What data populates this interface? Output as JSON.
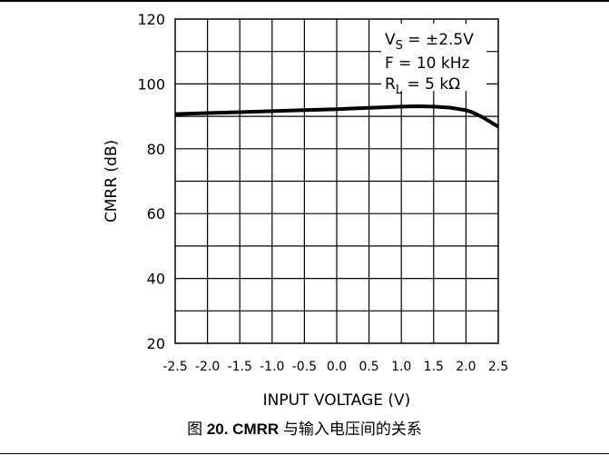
{
  "caption": {
    "prefix": "图",
    "label": "20. CMRR",
    "suffix": "与输入电压间的关系"
  },
  "chart_data": {
    "type": "line",
    "xlabel": "INPUT VOLTAGE (V)",
    "ylabel": "CMRR (dB)",
    "xlim": [
      -2.5,
      2.5
    ],
    "ylim": [
      20,
      120
    ],
    "x_ticks": [
      -2.5,
      -2.0,
      -1.5,
      -1.0,
      -0.5,
      0.0,
      0.5,
      1.0,
      1.5,
      2.0,
      2.5
    ],
    "x_tick_labels": [
      "-2.5",
      "-2.0",
      "-1.5",
      "-1.0",
      "-0.5",
      "0.0",
      "0.5",
      "1.0",
      "1.5",
      "2.0",
      "2.5"
    ],
    "y_ticks": [
      20,
      40,
      60,
      80,
      100,
      120
    ],
    "grid": true,
    "annotations": [
      {
        "main": "V",
        "sub": "S",
        "rest": " = ±2.5V"
      },
      {
        "main": "F = 10 kHz",
        "sub": "",
        "rest": ""
      },
      {
        "main": "R",
        "sub": "L",
        "rest": " = 5 kΩ"
      }
    ],
    "series": [
      {
        "x": [
          -2.5,
          -2.0,
          -1.5,
          -1.0,
          -0.5,
          0.0,
          0.5,
          1.0,
          1.25,
          1.5,
          1.75,
          2.0,
          2.1,
          2.25,
          2.4,
          2.5
        ],
        "y": [
          90.7,
          91.0,
          91.3,
          91.6,
          91.9,
          92.2,
          92.6,
          93.0,
          93.1,
          93.0,
          92.7,
          91.9,
          91.2,
          89.8,
          88.0,
          86.8
        ]
      }
    ]
  }
}
